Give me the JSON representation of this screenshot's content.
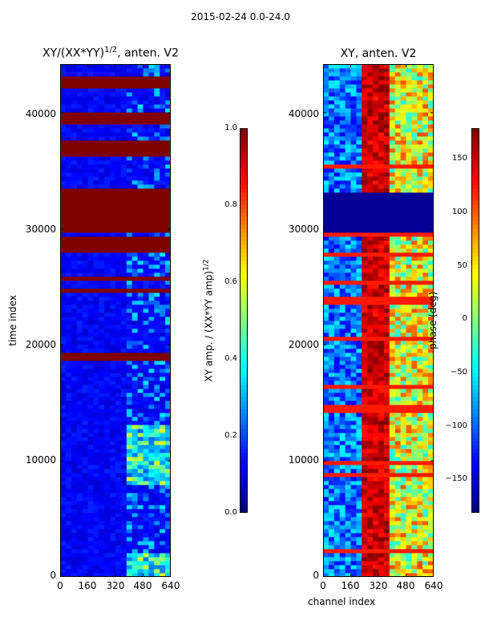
{
  "figure": {
    "suptitle": "2015-02-24 0.0-24.0"
  },
  "chart_data": [
    {
      "type": "heatmap",
      "title": "XY/(XX*YY)^{1/2}, anten. V2",
      "title_main": "XY/(XX*YY)",
      "title_exp": "1/2",
      "title_tail": ", anten. V2",
      "xlabel": "",
      "ylabel": "time index",
      "xlim": [
        0,
        640
      ],
      "ylim": [
        0,
        44200
      ],
      "xticks": [
        0,
        160,
        320,
        480,
        640
      ],
      "yticks": [
        0,
        10000,
        20000,
        30000,
        40000
      ],
      "colorbar": {
        "label": "XY amp. / (XX*YY amp)^{1/2}",
        "label_main": "XY amp. / (XX*YY amp)",
        "label_exp": "1/2",
        "range": [
          0.0,
          1.0
        ],
        "ticks": [
          "0.0",
          "0.2",
          "0.4",
          "0.6",
          "0.8",
          "1.0"
        ],
        "colormap": "jet"
      },
      "saturated_bands_time_index": [
        [
          42300,
          43100
        ],
        [
          38900,
          40000
        ],
        [
          36200,
          37500
        ],
        [
          29700,
          33500
        ],
        [
          27800,
          29400
        ],
        [
          18800,
          19300
        ]
      ],
      "bright_regions": [
        [
          400,
          640,
          0,
          2200
        ],
        [
          400,
          640,
          8000,
          13000
        ],
        [
          400,
          640,
          30000,
          30200
        ]
      ]
    },
    {
      "type": "heatmap",
      "title": "XY, anten. V2",
      "xlabel": "channel index",
      "ylabel": "",
      "xlim": [
        0,
        640
      ],
      "ylim": [
        0,
        44200
      ],
      "xticks": [
        0,
        160,
        320,
        480,
        640
      ],
      "yticks": [
        0,
        10000,
        20000,
        30000,
        40000
      ],
      "colorbar": {
        "label": "phase (deg)",
        "range": [
          -180,
          180
        ],
        "ticks": [
          "150",
          "100",
          "50",
          "0",
          "−50",
          "−100",
          "−150"
        ],
        "colormap": "jet"
      },
      "dark_band_time_index": [
        29600,
        33300
      ],
      "hot_band_channels": [
        240,
        380
      ]
    }
  ]
}
